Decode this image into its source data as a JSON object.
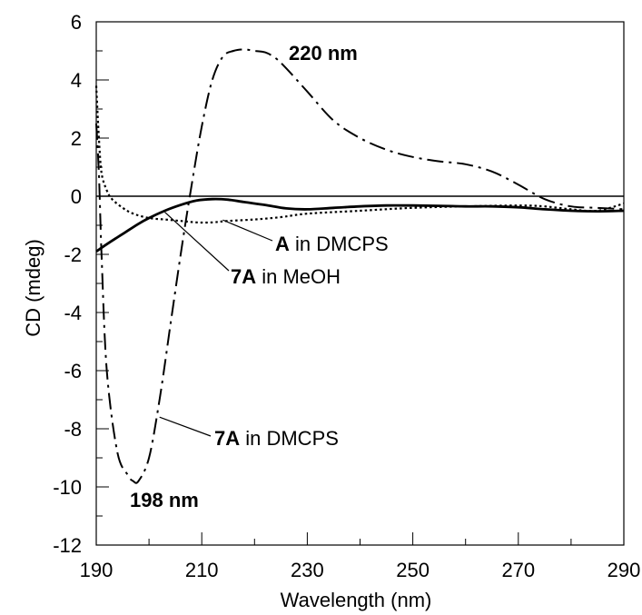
{
  "chart_data": {
    "type": "line",
    "xlabel": "Wavelength (nm)",
    "ylabel": "CD (mdeg)",
    "xlim": [
      190,
      290
    ],
    "ylim": [
      -12,
      6
    ],
    "x_ticks": [
      "190",
      "210",
      "230",
      "250",
      "270",
      "290"
    ],
    "y_ticks": [
      "-12",
      "-10",
      "-8",
      "-6",
      "-4",
      "-2",
      "0",
      "2",
      "4",
      "6"
    ],
    "zero_line": true,
    "grid": false,
    "series": [
      {
        "style": "dash-dot",
        "x": [
          190,
          190.5,
          191,
          192,
          194,
          196,
          197,
          198,
          200,
          202,
          204,
          206,
          208,
          210,
          212,
          214,
          216,
          218,
          220,
          222,
          224,
          226,
          230,
          235,
          240,
          245,
          250,
          255,
          260,
          265,
          270,
          275,
          280,
          285,
          290
        ],
        "y": [
          2.5,
          0.8,
          -2.0,
          -6.0,
          -8.8,
          -9.6,
          -9.8,
          -9.8,
          -9.0,
          -7.0,
          -4.5,
          -2.0,
          0.3,
          2.4,
          4.0,
          4.8,
          5.0,
          5.05,
          5.0,
          4.95,
          4.75,
          4.4,
          3.6,
          2.6,
          2.0,
          1.6,
          1.35,
          1.2,
          1.1,
          0.85,
          0.4,
          -0.1,
          -0.35,
          -0.4,
          -0.45
        ]
      },
      {
        "style": "solid",
        "x": [
          190,
          192,
          195,
          198,
          200,
          203,
          206,
          209,
          212,
          215,
          218,
          222,
          226,
          230,
          235,
          240,
          245,
          250,
          255,
          260,
          265,
          270,
          275,
          280,
          285,
          290
        ],
        "y": [
          -1.9,
          -1.65,
          -1.3,
          -0.95,
          -0.75,
          -0.5,
          -0.3,
          -0.15,
          -0.1,
          -0.12,
          -0.2,
          -0.3,
          -0.42,
          -0.45,
          -0.4,
          -0.35,
          -0.32,
          -0.32,
          -0.33,
          -0.35,
          -0.35,
          -0.38,
          -0.45,
          -0.5,
          -0.52,
          -0.5
        ]
      },
      {
        "style": "dotted",
        "x": [
          190,
          190.5,
          191,
          192,
          193,
          195,
          197,
          200,
          203,
          206,
          209,
          212,
          215,
          220,
          225,
          230,
          240,
          250,
          260,
          270,
          275,
          280,
          285,
          290
        ],
        "y": [
          3.8,
          2.0,
          0.8,
          0.2,
          -0.1,
          -0.4,
          -0.6,
          -0.75,
          -0.8,
          -0.85,
          -0.9,
          -0.9,
          -0.85,
          -0.8,
          -0.72,
          -0.6,
          -0.5,
          -0.4,
          -0.35,
          -0.32,
          -0.35,
          -0.45,
          -0.5,
          -0.25
        ]
      }
    ],
    "annotations": [
      {
        "bold": "",
        "text": "220 nm",
        "bold_all": true
      },
      {
        "bold": "",
        "text": "198 nm",
        "bold_all": true
      },
      {
        "bold": "A",
        "text": " in DMCPS",
        "bold_all": false
      },
      {
        "bold": "7A",
        "text": " in MeOH",
        "bold_all": false
      },
      {
        "bold": "7A",
        "text": " in DMCPS",
        "bold_all": false
      }
    ]
  }
}
